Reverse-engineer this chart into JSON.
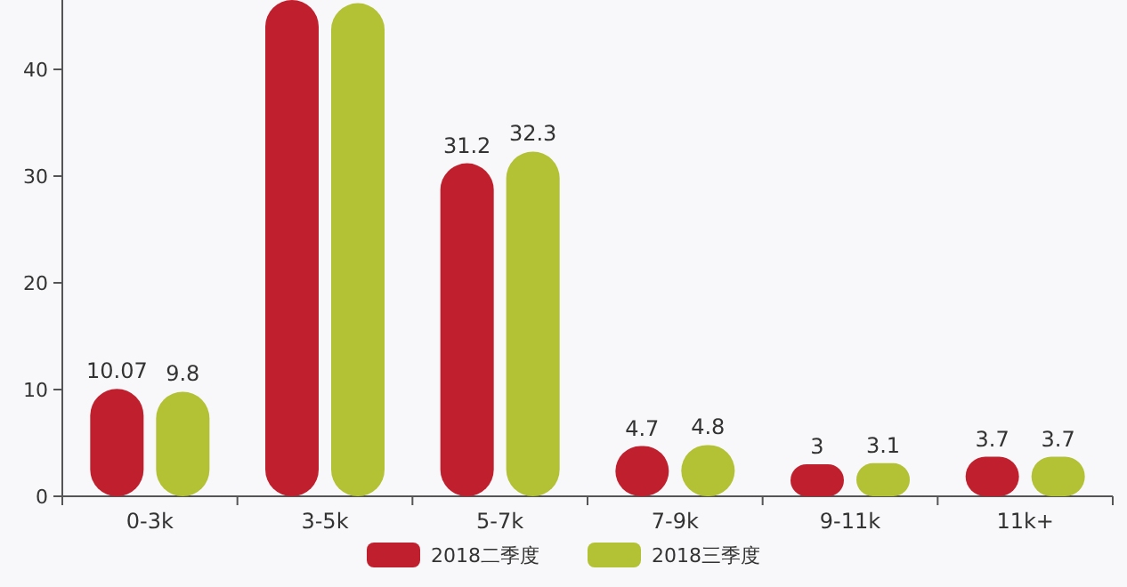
{
  "chart_data": {
    "type": "bar",
    "categories": [
      "0-3k",
      "3-5k",
      "5-7k",
      "7-9k",
      "9-11k",
      "11k+"
    ],
    "series": [
      {
        "name": "2018二季度",
        "color": "#c0202e",
        "values": [
          10.07,
          46.5,
          31.2,
          4.7,
          3,
          3.7
        ],
        "value_labels": [
          "10.07",
          null,
          "31.2",
          "4.7",
          "3",
          "3.7"
        ]
      },
      {
        "name": "2018三季度",
        "color": "#b2c234",
        "values": [
          9.8,
          46.2,
          32.3,
          4.8,
          3.1,
          3.7
        ],
        "value_labels": [
          "9.8",
          null,
          "32.3",
          "4.8",
          "3.1",
          "3.7"
        ]
      }
    ],
    "ylim": [
      0,
      46.5
    ],
    "yticks": [
      0,
      10,
      20,
      30,
      40
    ],
    "legend": "bottom"
  }
}
